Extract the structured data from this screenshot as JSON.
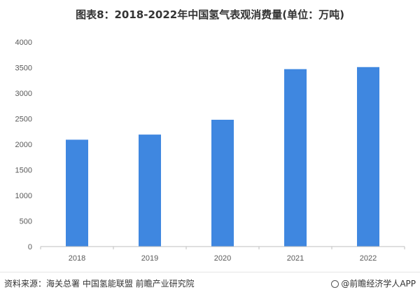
{
  "title": "图表8：2018-2022年中国氢气表观消费量(单位：万吨)",
  "source": "资料来源：海关总署 中国氢能联盟 前瞻产业研究院",
  "brand": "@前瞻经济学人APP",
  "colors": {
    "bar": "#3f87e0",
    "axis": "#bfbfbf"
  },
  "chart_data": {
    "type": "bar",
    "title": "图表8：2018-2022年中国氢气表观消费量(单位：万吨)",
    "categories": [
      "2018",
      "2019",
      "2020",
      "2021",
      "2022"
    ],
    "values": [
      2090,
      2190,
      2480,
      3470,
      3510
    ],
    "ylim": [
      0,
      4000
    ],
    "yticks": [
      0,
      500,
      1000,
      1500,
      2000,
      2500,
      3000,
      3500,
      4000
    ],
    "xlabel": "",
    "ylabel": "",
    "grid": false
  }
}
